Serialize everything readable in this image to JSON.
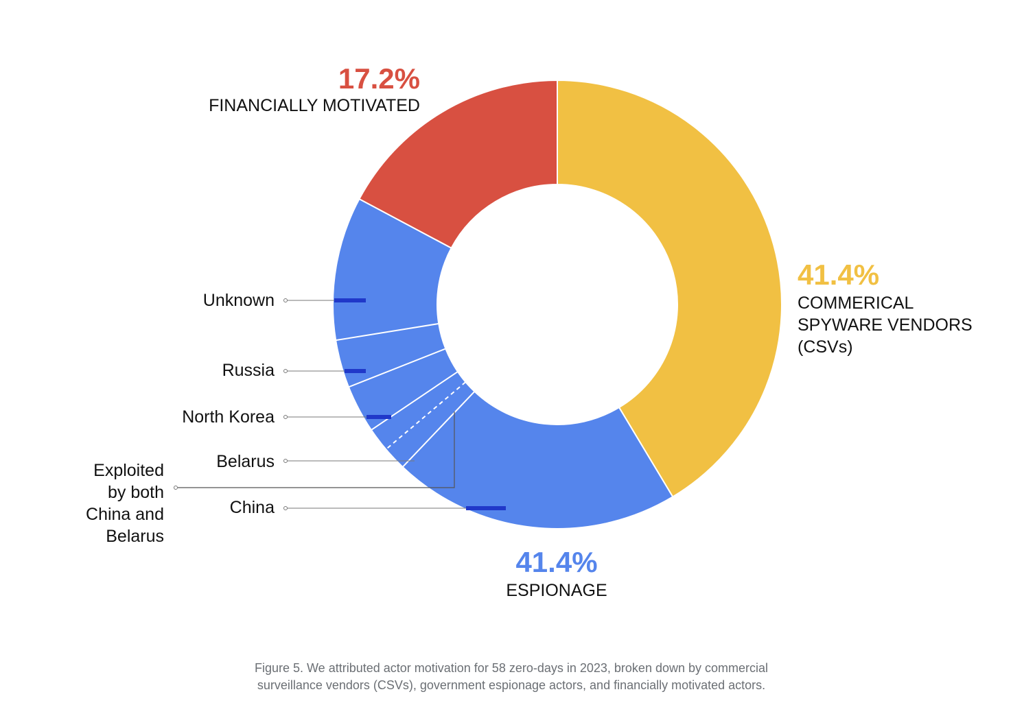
{
  "chart_data": {
    "type": "pie",
    "variant": "donut",
    "total_count": 58,
    "slices": [
      {
        "name": "COMMERICAL SPYWARE VENDORS (CSVs)",
        "label_lines": [
          "COMMERICAL",
          "SPYWARE VENDORS",
          "(CSVs)"
        ],
        "percent_label": "41.4%",
        "value": 41.4,
        "color": "#f1c043"
      },
      {
        "name": "ESPIONAGE",
        "label_lines": [
          "ESPIONAGE"
        ],
        "percent_label": "41.4%",
        "value": 41.4,
        "color": "#5585ec"
      },
      {
        "name": "FINANCIALLY MOTIVATED",
        "label_lines": [
          "FINANCIALLY MOTIVATED"
        ],
        "percent_label": "17.2%",
        "value": 17.2,
        "color": "#d85041"
      }
    ],
    "espionage_breakdown": [
      {
        "name": "China",
        "count": 12
      },
      {
        "name": "Exploited by both China and Belarus",
        "label_lines": [
          "Exploited",
          "by both",
          "China and",
          "Belarus"
        ],
        "count": 1
      },
      {
        "name": "Belarus",
        "count": 1
      },
      {
        "name": "North Korea",
        "count": 2
      },
      {
        "name": "Russia",
        "count": 2
      },
      {
        "name": "Unknown",
        "count": 6
      }
    ]
  },
  "caption": {
    "line1": "Figure 5. We attributed actor motivation for 58 zero-days in 2023, broken down by commercial",
    "line2": "surveillance vendors (CSVs), government espionage actors, and financially motivated actors."
  }
}
